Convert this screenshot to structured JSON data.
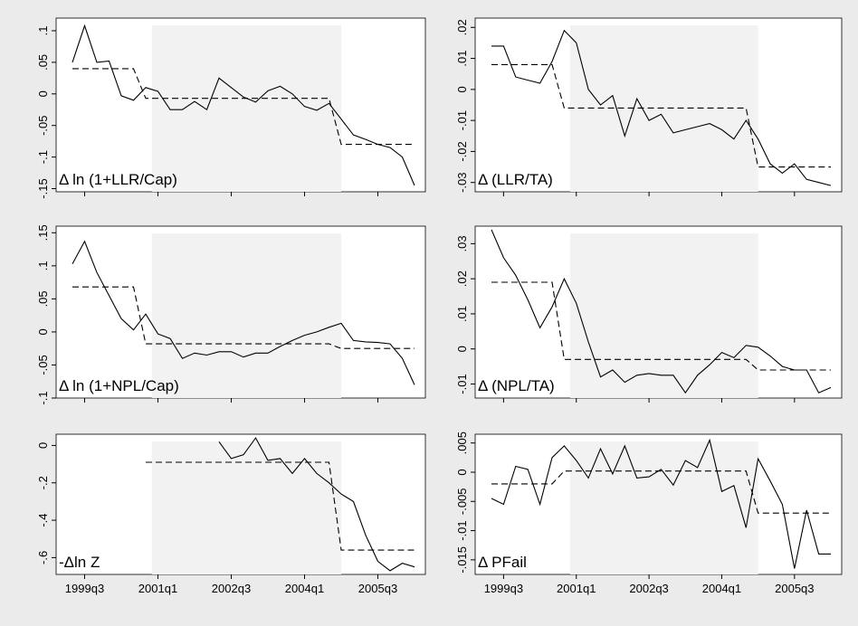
{
  "chart_data": [
    {
      "type": "line",
      "label": "Δ ln (1+LLR/Cap)",
      "x": [
        "1999q2",
        "1999q3",
        "1999q4",
        "2000q1",
        "2000q2",
        "2000q3",
        "2000q4",
        "2001q1",
        "2001q2",
        "2001q3",
        "2001q4",
        "2002q1",
        "2002q2",
        "2002q3",
        "2002q4",
        "2003q1",
        "2003q2",
        "2003q3",
        "2003q4",
        "2004q1",
        "2004q2",
        "2004q3",
        "2004q4",
        "2005q1",
        "2005q2",
        "2005q3",
        "2005q4",
        "2006q1",
        "2006q2"
      ],
      "xticks": [
        "1999q3",
        "2001q1",
        "2002q3",
        "2004q1",
        "2005q3"
      ],
      "show_xtick_labels": false,
      "shade": [
        "2000q4",
        "2004q4"
      ],
      "ylim": [
        -0.155,
        0.12
      ],
      "yticks": [
        {
          "value": -0.15,
          "label": "-.15"
        },
        {
          "value": -0.1,
          "label": "-.1"
        },
        {
          "value": -0.05,
          "label": "-.05"
        },
        0,
        {
          "value": 0.05,
          "label": ".05"
        },
        {
          "value": 0.1,
          "label": ".1"
        }
      ],
      "series": [
        {
          "color": "#000000",
          "dashed": false,
          "values": [
            0.05,
            0.108,
            0.05,
            0.052,
            -0.003,
            -0.01,
            0.01,
            0.004,
            -0.025,
            -0.025,
            -0.012,
            -0.025,
            0.025,
            0.01,
            -0.005,
            -0.013,
            0.005,
            0.012,
            0,
            -0.02,
            -0.026,
            -0.015,
            -0.04,
            -0.065,
            -0.072,
            -0.08,
            -0.085,
            -0.1,
            -0.145
          ]
        },
        {
          "color": "#000000",
          "dashed": true,
          "values": [
            0.04,
            0.04,
            0.04,
            0.04,
            0.04,
            0.04,
            -0.007,
            -0.007,
            -0.007,
            -0.007,
            -0.007,
            -0.007,
            -0.007,
            -0.007,
            -0.007,
            -0.007,
            -0.007,
            -0.007,
            -0.007,
            -0.007,
            -0.007,
            -0.007,
            -0.08,
            -0.08,
            -0.08,
            -0.08,
            -0.08,
            -0.08,
            -0.08
          ]
        }
      ]
    },
    {
      "type": "line",
      "label": "Δ (LLR/TA)",
      "x": [
        "1999q2",
        "1999q3",
        "1999q4",
        "2000q1",
        "2000q2",
        "2000q3",
        "2000q4",
        "2001q1",
        "2001q2",
        "2001q3",
        "2001q4",
        "2002q1",
        "2002q2",
        "2002q3",
        "2002q4",
        "2003q1",
        "2003q2",
        "2003q3",
        "2003q4",
        "2004q1",
        "2004q2",
        "2004q3",
        "2004q4",
        "2005q1",
        "2005q2",
        "2005q3",
        "2005q4",
        "2006q1",
        "2006q2"
      ],
      "xticks": [
        "1999q3",
        "2001q1",
        "2002q3",
        "2004q1",
        "2005q3"
      ],
      "show_xtick_labels": false,
      "shade": [
        "2000q4",
        "2004q4"
      ],
      "ylim": [
        -0.033,
        0.023
      ],
      "yticks": [
        {
          "value": -0.03,
          "label": "-.03"
        },
        {
          "value": -0.02,
          "label": "-.02"
        },
        {
          "value": -0.01,
          "label": "-.01"
        },
        0,
        {
          "value": 0.01,
          "label": ".01"
        },
        {
          "value": 0.02,
          "label": ".02"
        }
      ],
      "series": [
        {
          "color": "#000000",
          "dashed": false,
          "values": [
            0.014,
            0.014,
            0.004,
            0.003,
            0.002,
            0.009,
            0.019,
            0.015,
            0,
            -0.005,
            -0.002,
            -0.015,
            -0.003,
            -0.01,
            -0.008,
            -0.014,
            -0.013,
            -0.012,
            -0.011,
            -0.013,
            -0.016,
            -0.01,
            -0.016,
            -0.024,
            -0.027,
            -0.024,
            -0.029,
            -0.03,
            -0.031
          ]
        },
        {
          "color": "#000000",
          "dashed": true,
          "values": [
            0.008,
            0.008,
            0.008,
            0.008,
            0.008,
            0.008,
            -0.006,
            -0.006,
            -0.006,
            -0.006,
            -0.006,
            -0.006,
            -0.006,
            -0.006,
            -0.006,
            -0.006,
            -0.006,
            -0.006,
            -0.006,
            -0.006,
            -0.006,
            -0.006,
            -0.025,
            -0.025,
            -0.025,
            -0.025,
            -0.025,
            -0.025,
            -0.025
          ]
        }
      ]
    },
    {
      "type": "line",
      "label": "Δ ln (1+NPL/Cap)",
      "x": [
        "1999q2",
        "1999q3",
        "1999q4",
        "2000q1",
        "2000q2",
        "2000q3",
        "2000q4",
        "2001q1",
        "2001q2",
        "2001q3",
        "2001q4",
        "2002q1",
        "2002q2",
        "2002q3",
        "2002q4",
        "2003q1",
        "2003q2",
        "2003q3",
        "2003q4",
        "2004q1",
        "2004q2",
        "2004q3",
        "2004q4",
        "2005q1",
        "2005q2",
        "2005q3",
        "2005q4",
        "2006q1",
        "2006q2"
      ],
      "xticks": [
        "1999q3",
        "2001q1",
        "2002q3",
        "2004q1",
        "2005q3"
      ],
      "show_xtick_labels": false,
      "shade": [
        "2000q4",
        "2004q4"
      ],
      "ylim": [
        -0.1,
        0.16
      ],
      "yticks": [
        {
          "value": -0.1,
          "label": "-.1"
        },
        {
          "value": -0.05,
          "label": "-.05"
        },
        0,
        {
          "value": 0.05,
          "label": ".05"
        },
        {
          "value": 0.1,
          "label": ".1"
        },
        {
          "value": 0.15,
          "label": ".15"
        }
      ],
      "series": [
        {
          "color": "#000000",
          "dashed": false,
          "values": [
            0.103,
            0.137,
            0.09,
            0.055,
            0.02,
            0.003,
            0.027,
            -0.003,
            -0.01,
            -0.04,
            -0.032,
            -0.035,
            -0.03,
            -0.03,
            -0.038,
            -0.032,
            -0.032,
            -0.022,
            -0.013,
            -0.005,
            0,
            0.007,
            0.013,
            -0.013,
            -0.015,
            -0.016,
            -0.018,
            -0.04,
            -0.08
          ]
        },
        {
          "color": "#000000",
          "dashed": true,
          "values": [
            0.068,
            0.068,
            0.068,
            0.068,
            0.068,
            0.068,
            -0.018,
            -0.018,
            -0.018,
            -0.018,
            -0.018,
            -0.018,
            -0.018,
            -0.018,
            -0.018,
            -0.018,
            -0.018,
            -0.018,
            -0.018,
            -0.018,
            -0.018,
            -0.018,
            -0.025,
            -0.025,
            -0.025,
            -0.025,
            -0.025,
            -0.025,
            -0.025
          ]
        }
      ]
    },
    {
      "type": "line",
      "label": "Δ (NPL/TA)",
      "x": [
        "1999q2",
        "1999q3",
        "1999q4",
        "2000q1",
        "2000q2",
        "2000q3",
        "2000q4",
        "2001q1",
        "2001q2",
        "2001q3",
        "2001q4",
        "2002q1",
        "2002q2",
        "2002q3",
        "2002q4",
        "2003q1",
        "2003q2",
        "2003q3",
        "2003q4",
        "2004q1",
        "2004q2",
        "2004q3",
        "2004q4",
        "2005q1",
        "2005q2",
        "2005q3",
        "2005q4",
        "2006q1",
        "2006q2"
      ],
      "xticks": [
        "1999q3",
        "2001q1",
        "2002q3",
        "2004q1",
        "2005q3"
      ],
      "show_xtick_labels": false,
      "shade": [
        "2000q4",
        "2004q4"
      ],
      "ylim": [
        -0.014,
        0.035
      ],
      "yticks": [
        {
          "value": -0.01,
          "label": "-.01"
        },
        0,
        {
          "value": 0.01,
          "label": ".01"
        },
        {
          "value": 0.02,
          "label": ".02"
        },
        {
          "value": 0.03,
          "label": ".03"
        }
      ],
      "series": [
        {
          "color": "#000000",
          "dashed": false,
          "values": [
            0.034,
            0.026,
            0.021,
            0.014,
            0.006,
            0.012,
            0.02,
            0.013,
            0.002,
            -0.008,
            -0.006,
            -0.0095,
            -0.0075,
            -0.007,
            -0.0075,
            -0.0075,
            -0.0125,
            -0.0075,
            -0.0045,
            -0.001,
            -0.0025,
            0.001,
            0.0005,
            -0.002,
            -0.005,
            -0.006,
            -0.006,
            -0.0125,
            -0.011
          ]
        },
        {
          "color": "#000000",
          "dashed": true,
          "values": [
            0.019,
            0.019,
            0.019,
            0.019,
            0.019,
            0.019,
            -0.003,
            -0.003,
            -0.003,
            -0.003,
            -0.003,
            -0.003,
            -0.003,
            -0.003,
            -0.003,
            -0.003,
            -0.003,
            -0.003,
            -0.003,
            -0.003,
            -0.003,
            -0.003,
            -0.006,
            -0.006,
            -0.006,
            -0.006,
            -0.006,
            -0.006,
            -0.006
          ]
        }
      ]
    },
    {
      "type": "line",
      "label": "-Δln Z",
      "x": [
        "1999q2",
        "1999q3",
        "1999q4",
        "2000q1",
        "2000q2",
        "2000q3",
        "2000q4",
        "2001q1",
        "2001q2",
        "2001q3",
        "2001q4",
        "2002q1",
        "2002q2",
        "2002q3",
        "2002q4",
        "2003q1",
        "2003q2",
        "2003q3",
        "2003q4",
        "2004q1",
        "2004q2",
        "2004q3",
        "2004q4",
        "2005q1",
        "2005q2",
        "2005q3",
        "2005q4",
        "2006q1",
        "2006q2"
      ],
      "xticks": [
        "1999q3",
        "2001q1",
        "2002q3",
        "2004q1",
        "2005q3"
      ],
      "show_xtick_labels": true,
      "shade": [
        "2000q4",
        "2004q4"
      ],
      "ylim": [
        -0.69,
        0.06
      ],
      "yticks": [
        {
          "value": -0.6,
          "label": "-.6"
        },
        {
          "value": -0.4,
          "label": "-.4"
        },
        {
          "value": -0.2,
          "label": "-.2"
        },
        0
      ],
      "series": [
        {
          "color": "#000000",
          "dashed": false,
          "values": [
            null,
            null,
            null,
            null,
            null,
            null,
            null,
            null,
            null,
            null,
            null,
            null,
            0.02,
            -0.07,
            -0.05,
            0.04,
            -0.08,
            -0.07,
            -0.15,
            -0.07,
            -0.15,
            -0.2,
            -0.26,
            -0.3,
            -0.48,
            -0.62,
            -0.67,
            -0.63,
            -0.65
          ]
        },
        {
          "color": "#000000",
          "dashed": true,
          "values": [
            null,
            null,
            null,
            null,
            null,
            null,
            -0.09,
            -0.09,
            -0.09,
            -0.09,
            -0.09,
            -0.09,
            -0.09,
            -0.09,
            -0.09,
            -0.09,
            -0.09,
            -0.09,
            -0.09,
            -0.09,
            -0.09,
            -0.09,
            -0.56,
            -0.56,
            -0.56,
            -0.56,
            -0.56,
            -0.56,
            -0.56
          ]
        }
      ]
    },
    {
      "type": "line",
      "label": "Δ PFail",
      "x": [
        "1999q2",
        "1999q3",
        "1999q4",
        "2000q1",
        "2000q2",
        "2000q3",
        "2000q4",
        "2001q1",
        "2001q2",
        "2001q3",
        "2001q4",
        "2002q1",
        "2002q2",
        "2002q3",
        "2002q4",
        "2003q1",
        "2003q2",
        "2003q3",
        "2003q4",
        "2004q1",
        "2004q2",
        "2004q3",
        "2004q4",
        "2005q1",
        "2005q2",
        "2005q3",
        "2005q4",
        "2006q1",
        "2006q2"
      ],
      "xticks": [
        "1999q3",
        "2001q1",
        "2002q3",
        "2004q1",
        "2005q3"
      ],
      "show_xtick_labels": true,
      "shade": [
        "2000q4",
        "2004q4"
      ],
      "ylim": [
        -0.0175,
        0.0065
      ],
      "yticks": [
        {
          "value": -0.015,
          "label": "-.015"
        },
        {
          "value": -0.01,
          "label": "-.01"
        },
        {
          "value": -0.005,
          "label": "-.005"
        },
        0,
        {
          "value": 0.005,
          "label": ".005"
        }
      ],
      "series": [
        {
          "color": "#000000",
          "dashed": false,
          "values": [
            -0.0045,
            -0.0055,
            0.001,
            0.0005,
            -0.0055,
            0.0025,
            0.0045,
            0.002,
            -0.001,
            0.004,
            -0.0003,
            0.0045,
            -0.001,
            -0.0008,
            0.0005,
            -0.0022,
            0.002,
            0.0008,
            0.0055,
            -0.0033,
            -0.0023,
            -0.0095,
            0.0023,
            -0.0015,
            -0.0055,
            -0.0165,
            -0.0065,
            -0.014,
            -0.014
          ]
        },
        {
          "color": "#000000",
          "dashed": true,
          "values": [
            -0.002,
            -0.002,
            -0.002,
            -0.002,
            -0.002,
            -0.002,
            0.0002,
            0.0002,
            0.0002,
            0.0002,
            0.0002,
            0.0002,
            0.0002,
            0.0002,
            0.0002,
            0.0002,
            0.0002,
            0.0002,
            0.0002,
            0.0002,
            0.0002,
            0.0002,
            -0.007,
            -0.007,
            -0.007,
            -0.007,
            -0.007,
            -0.007,
            -0.007
          ]
        }
      ]
    }
  ]
}
